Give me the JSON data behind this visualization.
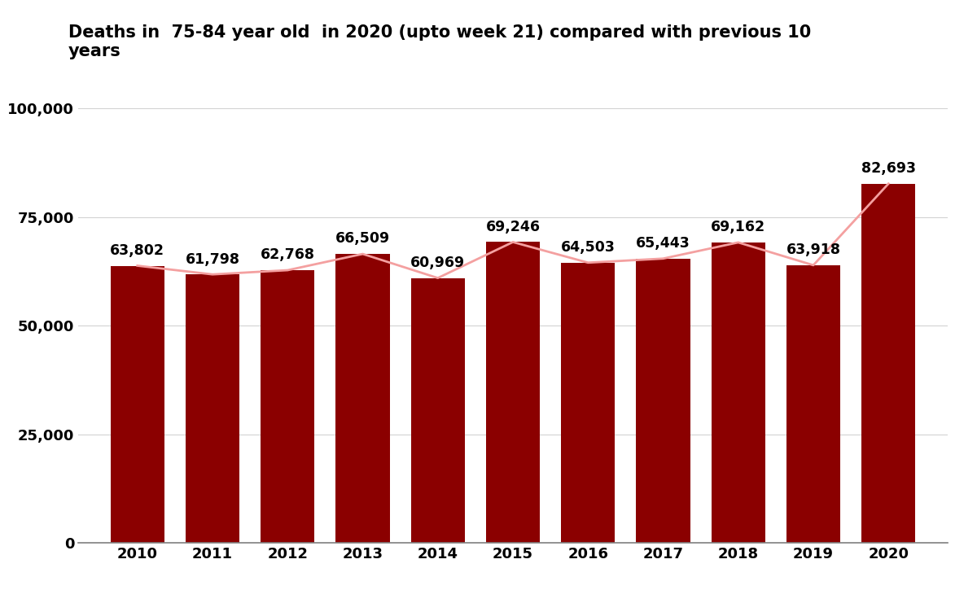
{
  "title_line1": "Deaths in  75-84 year old  in 2020 (upto week 21) compared with previous 10",
  "title_line2": "years",
  "years": [
    2010,
    2011,
    2012,
    2013,
    2014,
    2015,
    2016,
    2017,
    2018,
    2019,
    2020
  ],
  "values": [
    63802,
    61798,
    62768,
    66509,
    60969,
    69246,
    64503,
    65443,
    69162,
    63918,
    82693
  ],
  "bar_color": "#8B0000",
  "line_color": "#F4A0A0",
  "ylim": [
    0,
    100000
  ],
  "yticks": [
    0,
    25000,
    50000,
    75000,
    100000
  ],
  "ytick_labels": [
    "0",
    "25,000",
    "50,000",
    "75,000",
    "100,000"
  ],
  "background_color": "#ffffff",
  "title_fontsize": 15,
  "label_fontsize": 12.5,
  "tick_fontsize": 13,
  "bar_width": 0.72
}
